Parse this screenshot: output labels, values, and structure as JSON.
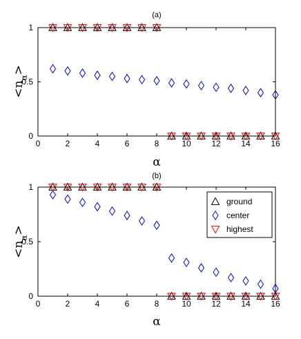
{
  "chart_data": [
    {
      "type": "scatter",
      "title": "(a)",
      "xlabel": "α",
      "ylabel": "<n_α>",
      "xlim": [
        0,
        16
      ],
      "ylim": [
        0,
        1
      ],
      "xticks": [
        0,
        2,
        4,
        6,
        8,
        10,
        12,
        14,
        16
      ],
      "yticks": [
        0,
        0.5,
        1
      ],
      "grid": false,
      "legend": null,
      "series": [
        {
          "marker": "triangle-up",
          "color": "#000000",
          "x": [
            1,
            2,
            3,
            4,
            5,
            6,
            7,
            8,
            9,
            10,
            11,
            12,
            13,
            14,
            15,
            16
          ],
          "values": [
            1,
            1,
            1,
            1,
            1,
            1,
            1,
            1,
            0,
            0,
            0,
            0,
            0,
            0,
            0,
            0
          ]
        },
        {
          "marker": "diamond",
          "color": "#0000ff",
          "x": [
            1,
            2,
            3,
            4,
            5,
            6,
            7,
            8,
            9,
            10,
            11,
            12,
            13,
            14,
            15,
            16
          ],
          "values": [
            0.62,
            0.6,
            0.58,
            0.56,
            0.55,
            0.53,
            0.52,
            0.51,
            0.49,
            0.48,
            0.465,
            0.45,
            0.44,
            0.42,
            0.4,
            0.38
          ]
        },
        {
          "marker": "triangle-down",
          "color": "#ff0000",
          "x": [
            1,
            2,
            3,
            4,
            5,
            6,
            7,
            8,
            9,
            10,
            11,
            12,
            13,
            14,
            15,
            16
          ],
          "values": [
            1,
            1,
            1,
            1,
            1,
            1,
            1,
            1,
            0,
            0,
            0,
            0,
            0,
            0,
            0,
            0
          ]
        }
      ]
    },
    {
      "type": "scatter",
      "title": "(b)",
      "xlabel": "α",
      "ylabel": "<n_α>",
      "xlim": [
        0,
        16
      ],
      "ylim": [
        0,
        1
      ],
      "xticks": [
        0,
        2,
        4,
        6,
        8,
        10,
        12,
        14,
        16
      ],
      "yticks": [
        0,
        0.5,
        1
      ],
      "grid": false,
      "legend": "top-right",
      "series": [
        {
          "name": "ground",
          "marker": "triangle-up",
          "color": "#000000",
          "x": [
            1,
            2,
            3,
            4,
            5,
            6,
            7,
            8,
            9,
            10,
            11,
            12,
            13,
            14,
            15,
            16
          ],
          "values": [
            1,
            1,
            1,
            1,
            1,
            1,
            1,
            1,
            0,
            0,
            0,
            0,
            0,
            0,
            0,
            0
          ]
        },
        {
          "name": "center",
          "marker": "diamond",
          "color": "#0000ff",
          "x": [
            1,
            2,
            3,
            4,
            5,
            6,
            7,
            8,
            9,
            10,
            11,
            12,
            13,
            14,
            15,
            16
          ],
          "values": [
            0.93,
            0.89,
            0.86,
            0.82,
            0.78,
            0.74,
            0.69,
            0.65,
            0.35,
            0.31,
            0.26,
            0.22,
            0.17,
            0.14,
            0.11,
            0.07
          ]
        },
        {
          "name": "highest",
          "marker": "triangle-down",
          "color": "#ff0000",
          "x": [
            1,
            2,
            3,
            4,
            5,
            6,
            7,
            8,
            9,
            10,
            11,
            12,
            13,
            14,
            15,
            16
          ],
          "values": [
            1,
            1,
            1,
            1,
            1,
            1,
            1,
            1,
            0,
            0,
            0,
            0,
            0,
            0,
            0,
            0
          ]
        }
      ]
    }
  ]
}
